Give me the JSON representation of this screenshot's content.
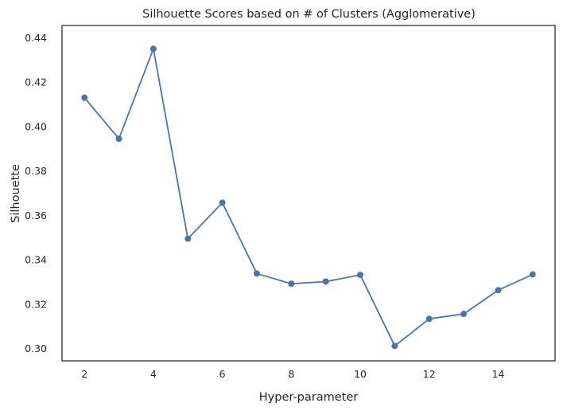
{
  "chart_data": {
    "type": "line",
    "title": "Silhouette Scores based on # of Clusters (Agglomerative)",
    "xlabel": "Hyper-parameter",
    "ylabel": "Silhouette",
    "x": [
      2,
      3,
      4,
      5,
      6,
      7,
      8,
      9,
      10,
      11,
      12,
      13,
      14,
      15
    ],
    "series": [
      {
        "values": [
          0.413,
          0.3945,
          0.435,
          0.3495,
          0.3657,
          0.3338,
          0.3292,
          0.3302,
          0.3332,
          0.3012,
          0.3134,
          0.3156,
          0.3263,
          0.3334
        ]
      }
    ],
    "xlim": [
      1.35,
      15.65
    ],
    "ylim": [
      0.2945,
      0.4455
    ],
    "xticks": [
      2,
      4,
      6,
      8,
      10,
      12,
      14
    ],
    "xtick_labels": [
      "2",
      "4",
      "6",
      "8",
      "10",
      "12",
      "14"
    ],
    "yticks": [
      0.3,
      0.32,
      0.34,
      0.36,
      0.38,
      0.4,
      0.42,
      0.44
    ],
    "ytick_labels": [
      "0.30",
      "0.32",
      "0.34",
      "0.36",
      "0.38",
      "0.40",
      "0.42",
      "0.44"
    ],
    "grid": false,
    "marker": "circle",
    "color": "#4c72b0"
  }
}
